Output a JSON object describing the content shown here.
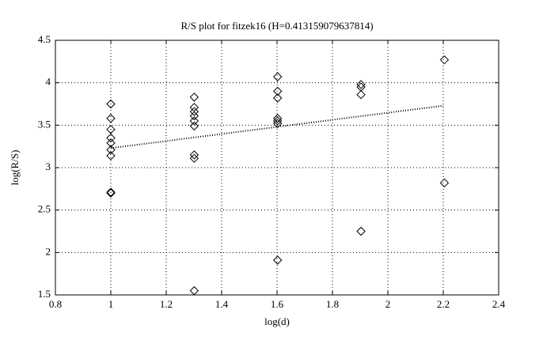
{
  "chart_data": {
    "type": "scatter",
    "title": "R/S plot for fitzek16 (H=0.413159079637814)",
    "x_label": "log(d)",
    "y_label": "log(R/S)",
    "x": [
      1,
      1,
      1,
      1,
      1,
      1,
      1,
      1,
      1,
      1.301,
      1.301,
      1.301,
      1.301,
      1.301,
      1.301,
      1.301,
      1.301,
      1.301,
      1.602,
      1.602,
      1.602,
      1.602,
      1.602,
      1.602,
      1.602,
      1.903,
      1.903,
      1.903,
      1.903,
      2.204,
      2.204
    ],
    "values": [
      3.75,
      3.58,
      3.45,
      3.35,
      3.29,
      3.21,
      3.14,
      2.71,
      2.7,
      3.83,
      3.71,
      3.66,
      3.61,
      3.55,
      3.49,
      3.15,
      3.11,
      1.55,
      4.07,
      3.9,
      3.82,
      3.58,
      3.55,
      3.52,
      1.91,
      3.98,
      3.95,
      3.86,
      2.25,
      4.27,
      2.82
    ],
    "color": "#000000",
    "fit": {
      "x": [
        1,
        2.2
      ],
      "values": [
        3.23,
        3.73
      ]
    },
    "xlim": [
      0.8,
      2.4
    ],
    "xticks": [
      0.8,
      1,
      1.2,
      1.4,
      1.6,
      1.8,
      2,
      2.2,
      2.4
    ],
    "ylim": [
      1.5,
      4.5
    ],
    "yticks": [
      1.5,
      2,
      2.5,
      3,
      3.5,
      4,
      4.5
    ],
    "grid": true
  }
}
